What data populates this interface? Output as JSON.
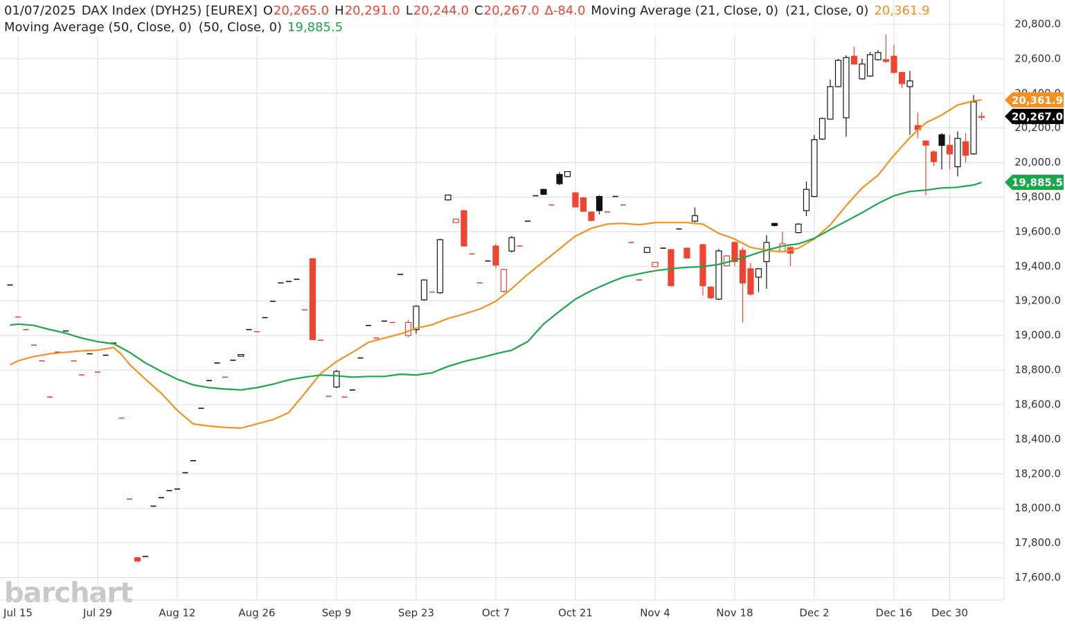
{
  "chart_data": {
    "type": "candlestick",
    "header": {
      "date": "01/07/2025",
      "symbol": "DAX Index (DYH25) [EUREX]",
      "ohlc": [
        {
          "key": "O",
          "label": "20,265.0"
        },
        {
          "key": "H",
          "label": "20,291.0"
        },
        {
          "key": "L",
          "label": "20,244.0"
        },
        {
          "key": "C",
          "label": "20,267.0"
        }
      ],
      "change": "∆-84.0"
    },
    "last_price_label": "20,267.0",
    "watermark": "barchart",
    "up_color": "#111111",
    "down_color": "#ee4430",
    "categories": [
      null,
      "Jul 15",
      null,
      null,
      null,
      null,
      null,
      null,
      null,
      null,
      null,
      "Jul 29",
      null,
      null,
      null,
      null,
      null,
      null,
      null,
      null,
      null,
      "Aug 12",
      null,
      null,
      null,
      null,
      null,
      null,
      null,
      null,
      null,
      "Aug 26",
      null,
      null,
      null,
      null,
      null,
      null,
      null,
      null,
      null,
      "Sep 9",
      null,
      null,
      null,
      null,
      null,
      null,
      null,
      null,
      null,
      "Sep 23",
      null,
      null,
      null,
      null,
      null,
      null,
      null,
      null,
      null,
      "Oct 7",
      null,
      null,
      null,
      null,
      null,
      null,
      null,
      null,
      null,
      "Oct 21",
      null,
      null,
      null,
      null,
      null,
      null,
      null,
      null,
      null,
      "Nov 4",
      null,
      null,
      null,
      null,
      null,
      null,
      null,
      null,
      null,
      "Nov 18",
      null,
      null,
      null,
      null,
      null,
      null,
      null,
      null,
      null,
      "Dec 2",
      null,
      null,
      null,
      null,
      null,
      null,
      null,
      null,
      null,
      "Dec 16",
      null,
      null,
      null,
      null,
      null,
      null,
      "Dec 30",
      null,
      null,
      null,
      null
    ],
    "candles": {
      "open": [
        19292,
        19107,
        19034,
        18944,
        18853,
        18644,
        18903,
        19026,
        18853,
        18772,
        18894,
        18788,
        18886,
        18956,
        18522,
        18054,
        17715,
        17722,
        18013,
        18062,
        18103,
        18112,
        18206,
        18276,
        18579,
        18739,
        18841,
        18759,
        18857,
        18880,
        19034,
        19022,
        19103,
        19198,
        19304,
        19312,
        19325,
        19148,
        19444,
        18972,
        18648,
        18702,
        18644,
        18685,
        18870,
        19058,
        18985,
        19083,
        19075,
        19353,
        19000,
        19034,
        19206,
        19251,
        19247,
        19784,
        19653,
        19722,
        19472,
        19304,
        19431,
        19517,
        19255,
        19488,
        19517,
        19661,
        19808,
        19845,
        19755,
        19931,
        19919,
        19825,
        19796,
        19714,
        19804,
        19714,
        19804,
        19755,
        19538,
        19321,
        19480,
        19398,
        19505,
        19497,
        19616,
        19505,
        19661,
        19525,
        19280,
        19210,
        19403,
        19538,
        19493,
        19386,
        19337,
        19427,
        19648,
        19484,
        19509,
        19595,
        19722,
        19804,
        20136,
        20251,
        20439,
        20259,
        20615,
        20484,
        20500,
        20595,
        20595,
        20615,
        20521,
        20439,
        20214,
        20124,
        20062,
        20161,
        20100,
        19976,
        20120,
        20050,
        20265
      ],
      "high": [
        19292,
        19107,
        19034,
        18944,
        18853,
        18644,
        18903,
        19026,
        18853,
        18772,
        18894,
        18788,
        18886,
        18956,
        18522,
        18054,
        17720,
        17722,
        18013,
        18062,
        18103,
        18112,
        18206,
        18276,
        18579,
        18739,
        18841,
        18759,
        18857,
        18892,
        19034,
        19022,
        19103,
        19198,
        19304,
        19312,
        19325,
        19148,
        19444,
        18972,
        18648,
        18800,
        18644,
        18685,
        18870,
        19058,
        18985,
        19083,
        19075,
        19353,
        19090,
        19175,
        19325,
        19251,
        19560,
        19815,
        19676,
        19725,
        19472,
        19304,
        19431,
        19530,
        19385,
        19575,
        19517,
        19661,
        19808,
        19848,
        19755,
        19945,
        19950,
        19830,
        19800,
        19718,
        19810,
        19714,
        19804,
        19755,
        19538,
        19321,
        19512,
        19425,
        19505,
        19500,
        19616,
        19508,
        19740,
        19530,
        19285,
        19500,
        19465,
        19545,
        19510,
        19420,
        19390,
        19580,
        19652,
        19600,
        19515,
        19650,
        19890,
        20160,
        20260,
        20480,
        20600,
        20620,
        20670,
        20600,
        20640,
        20650,
        20740,
        20680,
        20525,
        20530,
        20290,
        20130,
        20070,
        20170,
        20160,
        20180,
        20170,
        20390,
        20291
      ],
      "low": [
        19292,
        19107,
        19034,
        18944,
        18853,
        18644,
        18903,
        19026,
        18853,
        18772,
        18894,
        18788,
        18886,
        18956,
        18522,
        18054,
        17690,
        17722,
        18013,
        18062,
        18103,
        18112,
        18206,
        18276,
        18579,
        18739,
        18841,
        18759,
        18857,
        18878,
        19034,
        19022,
        19103,
        19198,
        19304,
        19312,
        19325,
        19148,
        18976,
        18972,
        18648,
        18695,
        18644,
        18685,
        18870,
        19058,
        18985,
        19083,
        19075,
        19353,
        18990,
        19010,
        19200,
        19251,
        19240,
        19780,
        19650,
        19515,
        19472,
        19304,
        19431,
        19390,
        19250,
        19480,
        19517,
        19661,
        19808,
        19812,
        19755,
        19870,
        19915,
        19740,
        19715,
        19660,
        19700,
        19714,
        19804,
        19755,
        19538,
        19321,
        19478,
        19395,
        19505,
        19285,
        19616,
        19445,
        19655,
        19230,
        19210,
        19205,
        19400,
        19400,
        19075,
        19230,
        19250,
        19270,
        19630,
        19480,
        19400,
        19590,
        19690,
        19800,
        20130,
        20250,
        20435,
        20150,
        20565,
        20480,
        20495,
        20590,
        20575,
        20515,
        20430,
        20160,
        20140,
        19810,
        19980,
        19960,
        19960,
        19920,
        20000,
        20045,
        20244
      ],
      "close": [
        19292,
        19107,
        19034,
        18944,
        18853,
        18644,
        18903,
        19026,
        18853,
        18772,
        18894,
        18788,
        18886,
        18956,
        18522,
        18054,
        17695,
        17722,
        18013,
        18062,
        18103,
        18112,
        18206,
        18276,
        18579,
        18739,
        18841,
        18759,
        18857,
        18890,
        19034,
        19022,
        19103,
        19198,
        19304,
        19312,
        19325,
        19148,
        18976,
        18972,
        18648,
        18792,
        18644,
        18685,
        18870,
        19058,
        18985,
        19083,
        19075,
        19353,
        19075,
        19169,
        19321,
        19251,
        19554,
        19812,
        19673,
        19517,
        19472,
        19304,
        19431,
        19407,
        19382,
        19566,
        19517,
        19661,
        19808,
        19816,
        19755,
        19878,
        19948,
        19743,
        19718,
        19665,
        19722,
        19714,
        19804,
        19755,
        19538,
        19321,
        19509,
        19423,
        19505,
        19288,
        19616,
        19448,
        19693,
        19288,
        19218,
        19489,
        19460,
        19427,
        19304,
        19239,
        19386,
        19538,
        19636,
        19530,
        19476,
        19644,
        19845,
        20132,
        20255,
        20439,
        20591,
        20607,
        20570,
        20570,
        20624,
        20636,
        20585,
        20521,
        20456,
        20472,
        20190,
        20100,
        20005,
        20099,
        20050,
        20140,
        20042,
        20351,
        20267
      ]
    },
    "series": [
      {
        "name": "Moving Average (21, Close, 0)",
        "params": "(21, Close, 0)",
        "value_label": "20,361.9",
        "color": "#f7901e",
        "values": [
          18830,
          18853,
          18866,
          18878,
          18886,
          18894,
          18899,
          18903,
          18907,
          18911,
          18913,
          18915,
          18923,
          18931,
          18890,
          18833,
          18790,
          18747,
          18706,
          18665,
          18616,
          18567,
          18528,
          18489,
          18482,
          18476,
          18472,
          18468,
          18466,
          18464,
          18476,
          18489,
          18501,
          18513,
          18533,
          18554,
          18610,
          18665,
          18722,
          18780,
          18814,
          18849,
          18876,
          18903,
          18931,
          18960,
          18972,
          18985,
          18997,
          19009,
          19025,
          19042,
          19052,
          19062,
          19080,
          19099,
          19111,
          19124,
          19138,
          19153,
          19175,
          19198,
          19234,
          19271,
          19312,
          19353,
          19390,
          19427,
          19464,
          19501,
          19538,
          19575,
          19597,
          19620,
          19632,
          19644,
          19646,
          19648,
          19644,
          19640,
          19646,
          19653,
          19653,
          19653,
          19653,
          19653,
          19648,
          19644,
          19617,
          19591,
          19574,
          19558,
          19533,
          19509,
          19501,
          19493,
          19488,
          19484,
          19494,
          19505,
          19531,
          19558,
          19599,
          19640,
          19695,
          19751,
          19802,
          19853,
          19890,
          19927,
          19984,
          20042,
          20093,
          20144,
          20187,
          20230,
          20252,
          20275,
          20304,
          20333,
          20345,
          20357,
          20361.9
        ]
      },
      {
        "name": "Moving Average (50, Close, 0)",
        "params": "(50, Close, 0)",
        "value_label": "19,885.5",
        "color": "#1aa64a",
        "values": [
          19060,
          19066,
          19062,
          19058,
          19046,
          19034,
          19024,
          19013,
          18999,
          18985,
          18975,
          18964,
          18958,
          18952,
          18928,
          18903,
          18872,
          18841,
          18817,
          18792,
          18770,
          18747,
          18731,
          18714,
          18706,
          18698,
          18694,
          18690,
          18688,
          18685,
          18692,
          18698,
          18708,
          18718,
          18731,
          18743,
          18751,
          18759,
          18765,
          18771,
          18769,
          18767,
          18763,
          18759,
          18761,
          18763,
          18763,
          18763,
          18770,
          18776,
          18774,
          18771,
          18778,
          18784,
          18803,
          18821,
          18835,
          18849,
          18860,
          18870,
          18882,
          18894,
          18905,
          18915,
          18940,
          18964,
          19015,
          19066,
          19103,
          19140,
          19175,
          19210,
          19235,
          19259,
          19280,
          19300,
          19319,
          19337,
          19347,
          19357,
          19366,
          19374,
          19380,
          19386,
          19390,
          19394,
          19396,
          19398,
          19405,
          19411,
          19423,
          19435,
          19450,
          19464,
          19479,
          19493,
          19505,
          19517,
          19524,
          19530,
          19546,
          19562,
          19587,
          19612,
          19637,
          19661,
          19686,
          19710,
          19737,
          19763,
          19786,
          19808,
          19821,
          19833,
          19837,
          19841,
          19847,
          19853,
          19855,
          19857,
          19864,
          19870,
          19885.5
        ]
      }
    ],
    "ylim": [
      17470,
      20940
    ],
    "yticks": [
      {
        "value": 17600,
        "label": "17,600.0"
      },
      {
        "value": 17800,
        "label": "17,800.0"
      },
      {
        "value": 18000,
        "label": "18,000.0"
      },
      {
        "value": 18200,
        "label": "18,200.0"
      },
      {
        "value": 18400,
        "label": "18,400.0"
      },
      {
        "value": 18600,
        "label": "18,600.0"
      },
      {
        "value": 18800,
        "label": "18,800.0"
      },
      {
        "value": 19000,
        "label": "19,000.0"
      },
      {
        "value": 19200,
        "label": "19,200.0"
      },
      {
        "value": 19400,
        "label": "19,400.0"
      },
      {
        "value": 19600,
        "label": "19,600.0"
      },
      {
        "value": 19800,
        "label": "19,800.0"
      },
      {
        "value": 20000,
        "label": "20,000.0"
      },
      {
        "value": 20200,
        "label": "20,200.0"
      },
      {
        "value": 20400,
        "label": "20,400.0"
      },
      {
        "value": 20600,
        "label": "20,600.0"
      },
      {
        "value": 20800,
        "label": "20,800.0"
      }
    ],
    "grid": true
  }
}
